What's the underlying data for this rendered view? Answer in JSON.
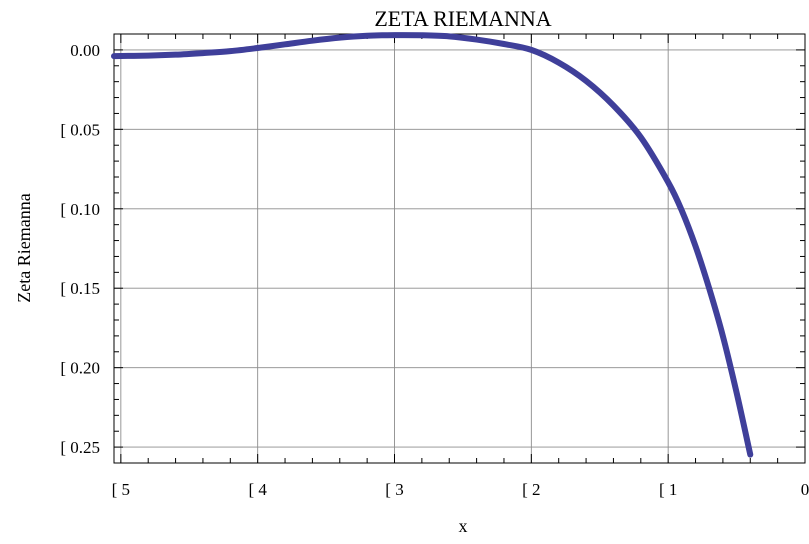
{
  "chart_data": {
    "type": "line",
    "title": "ZETA RIEMANNA",
    "xlabel": "x",
    "ylabel": "Zeta Riemanna",
    "xlim": [
      -5.05,
      0
    ],
    "ylim": [
      -0.26,
      0.01
    ],
    "x_ticks": [
      {
        "value": -5,
        "label": "[ 5"
      },
      {
        "value": -4,
        "label": "[ 4"
      },
      {
        "value": -3,
        "label": "[ 3"
      },
      {
        "value": -2,
        "label": "[ 2"
      },
      {
        "value": -1,
        "label": "[ 1"
      },
      {
        "value": 0,
        "label": "0"
      }
    ],
    "y_ticks": [
      {
        "value": 0,
        "label": "0.00"
      },
      {
        "value": -0.05,
        "label": "[ 0.05"
      },
      {
        "value": -0.1,
        "label": "[ 0.10"
      },
      {
        "value": -0.15,
        "label": "[ 0.15"
      },
      {
        "value": -0.2,
        "label": "[ 0.20"
      },
      {
        "value": -0.25,
        "label": "[ 0.25"
      }
    ],
    "grid": true,
    "series": [
      {
        "color": "#3f3f9a",
        "x": [
          -5.05,
          -4.8,
          -4.6,
          -4.4,
          -4.2,
          -4.0,
          -3.8,
          -3.6,
          -3.4,
          -3.2,
          -3.0,
          -2.8,
          -2.6,
          -2.4,
          -2.2,
          -2.0,
          -1.8,
          -1.6,
          -1.4,
          -1.2,
          -1.0,
          -0.9,
          -0.8,
          -0.7,
          -0.6,
          -0.5,
          -0.4
        ],
        "values": [
          -0.0039,
          -0.0036,
          -0.003,
          -0.002,
          -0.0008,
          0.0012,
          0.0035,
          0.0058,
          0.0077,
          0.0089,
          0.0093,
          0.0092,
          0.0085,
          0.0065,
          0.0037,
          0.0,
          -0.008,
          -0.0195,
          -0.035,
          -0.055,
          -0.0833,
          -0.1012,
          -0.1236,
          -0.1502,
          -0.1802,
          -0.2157,
          -0.2547
        ]
      }
    ]
  }
}
